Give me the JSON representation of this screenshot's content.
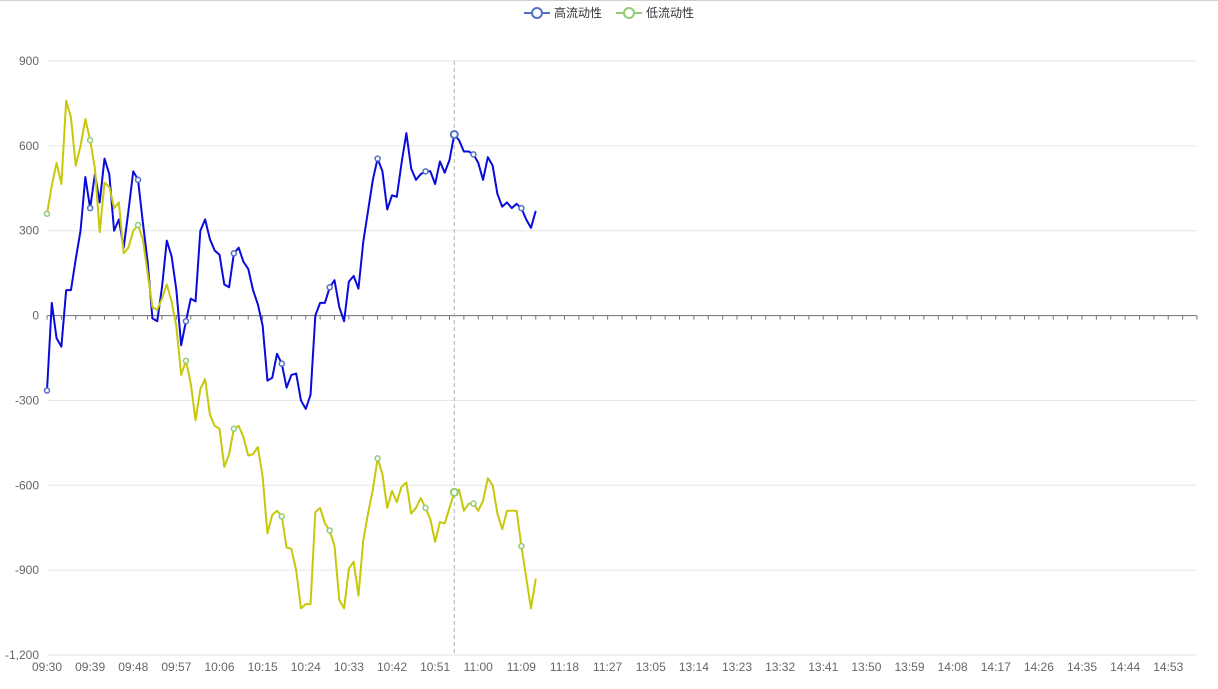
{
  "chart_data": {
    "type": "line",
    "legend_position": "top-center",
    "x_labels": [
      "09:30",
      "09:39",
      "09:48",
      "09:57",
      "10:06",
      "10:15",
      "10:24",
      "10:33",
      "10:42",
      "10:51",
      "11:00",
      "11:09",
      "11:18",
      "11:27",
      "13:05",
      "13:14",
      "13:23",
      "13:32",
      "13:41",
      "13:50",
      "13:59",
      "14:08",
      "14:17",
      "14:26",
      "14:35",
      "14:44",
      "14:53"
    ],
    "x_slots_per_label": 9,
    "x_slots_total": 240,
    "y_ticks": [
      900,
      600,
      300,
      0,
      -300,
      -600,
      -900,
      -1200
    ],
    "y_tick_labels": [
      "900",
      "600",
      "300",
      "0",
      "-300",
      "-600",
      "-900",
      "-1,200"
    ],
    "ylim": [
      -1200,
      900
    ],
    "grid": true,
    "hover_index": 85,
    "series": [
      {
        "name": "高流动性",
        "color": "#0a0adc",
        "marker_color": "#5470c6",
        "points": [
          [
            0,
            -265
          ],
          [
            1,
            45
          ],
          [
            2,
            -80
          ],
          [
            3,
            -110
          ],
          [
            4,
            90
          ],
          [
            5,
            90
          ],
          [
            6,
            200
          ],
          [
            7,
            300
          ],
          [
            8,
            490
          ],
          [
            9,
            380
          ],
          [
            10,
            500
          ],
          [
            11,
            400
          ],
          [
            12,
            555
          ],
          [
            13,
            500
          ],
          [
            14,
            300
          ],
          [
            15,
            340
          ],
          [
            16,
            240
          ],
          [
            17,
            370
          ],
          [
            18,
            510
          ],
          [
            19,
            480
          ],
          [
            20,
            330
          ],
          [
            21,
            190
          ],
          [
            22,
            -10
          ],
          [
            23,
            -20
          ],
          [
            24,
            100
          ],
          [
            25,
            265
          ],
          [
            26,
            210
          ],
          [
            27,
            90
          ],
          [
            28,
            -105
          ],
          [
            29,
            -20
          ],
          [
            30,
            60
          ],
          [
            31,
            50
          ],
          [
            32,
            300
          ],
          [
            33,
            340
          ],
          [
            34,
            270
          ],
          [
            35,
            230
          ],
          [
            36,
            215
          ],
          [
            37,
            110
          ],
          [
            38,
            100
          ],
          [
            39,
            220
          ],
          [
            40,
            240
          ],
          [
            41,
            190
          ],
          [
            42,
            165
          ],
          [
            43,
            90
          ],
          [
            44,
            40
          ],
          [
            45,
            -35
          ],
          [
            46,
            -230
          ],
          [
            47,
            -220
          ],
          [
            48,
            -135
          ],
          [
            49,
            -170
          ],
          [
            50,
            -255
          ],
          [
            51,
            -210
          ],
          [
            52,
            -205
          ],
          [
            53,
            -300
          ],
          [
            54,
            -330
          ],
          [
            55,
            -280
          ],
          [
            56,
            0
          ],
          [
            57,
            45
          ],
          [
            58,
            45
          ],
          [
            59,
            100
          ],
          [
            60,
            125
          ],
          [
            61,
            30
          ],
          [
            62,
            -20
          ],
          [
            63,
            120
          ],
          [
            64,
            140
          ],
          [
            65,
            95
          ],
          [
            66,
            260
          ],
          [
            67,
            370
          ],
          [
            68,
            480
          ],
          [
            69,
            555
          ],
          [
            70,
            510
          ],
          [
            71,
            375
          ],
          [
            72,
            425
          ],
          [
            73,
            420
          ],
          [
            74,
            540
          ],
          [
            75,
            645
          ],
          [
            76,
            520
          ],
          [
            77,
            480
          ],
          [
            78,
            500
          ],
          [
            79,
            510
          ],
          [
            80,
            510
          ],
          [
            81,
            465
          ],
          [
            82,
            545
          ],
          [
            83,
            505
          ],
          [
            84,
            550
          ],
          [
            85,
            640
          ],
          [
            86,
            620
          ],
          [
            87,
            580
          ],
          [
            88,
            580
          ],
          [
            89,
            570
          ],
          [
            90,
            540
          ],
          [
            91,
            480
          ],
          [
            92,
            560
          ],
          [
            93,
            530
          ],
          [
            94,
            430
          ],
          [
            95,
            385
          ],
          [
            96,
            400
          ],
          [
            97,
            380
          ],
          [
            98,
            395
          ],
          [
            99,
            380
          ],
          [
            100,
            340
          ],
          [
            101,
            310
          ],
          [
            102,
            370
          ]
        ],
        "marker_indices": [
          0,
          9,
          19,
          29,
          39,
          49,
          59,
          69,
          79,
          89,
          99
        ]
      },
      {
        "name": "低流动性",
        "color": "#c8c80a",
        "marker_color": "#91cc75",
        "points": [
          [
            0,
            360
          ],
          [
            1,
            460
          ],
          [
            2,
            540
          ],
          [
            3,
            465
          ],
          [
            4,
            760
          ],
          [
            5,
            700
          ],
          [
            6,
            530
          ],
          [
            7,
            600
          ],
          [
            8,
            695
          ],
          [
            9,
            620
          ],
          [
            10,
            520
          ],
          [
            11,
            295
          ],
          [
            12,
            470
          ],
          [
            13,
            455
          ],
          [
            14,
            380
          ],
          [
            15,
            400
          ],
          [
            16,
            220
          ],
          [
            17,
            240
          ],
          [
            18,
            300
          ],
          [
            19,
            320
          ],
          [
            20,
            270
          ],
          [
            21,
            150
          ],
          [
            22,
            30
          ],
          [
            23,
            20
          ],
          [
            24,
            60
          ],
          [
            25,
            110
          ],
          [
            26,
            50
          ],
          [
            27,
            -40
          ],
          [
            28,
            -210
          ],
          [
            29,
            -160
          ],
          [
            30,
            -240
          ],
          [
            31,
            -370
          ],
          [
            32,
            -260
          ],
          [
            33,
            -225
          ],
          [
            34,
            -350
          ],
          [
            35,
            -390
          ],
          [
            36,
            -400
          ],
          [
            37,
            -535
          ],
          [
            38,
            -490
          ],
          [
            39,
            -400
          ],
          [
            40,
            -390
          ],
          [
            41,
            -430
          ],
          [
            42,
            -495
          ],
          [
            43,
            -490
          ],
          [
            44,
            -465
          ],
          [
            45,
            -570
          ],
          [
            46,
            -770
          ],
          [
            47,
            -705
          ],
          [
            48,
            -690
          ],
          [
            49,
            -710
          ],
          [
            50,
            -820
          ],
          [
            51,
            -825
          ],
          [
            52,
            -900
          ],
          [
            53,
            -1035
          ],
          [
            54,
            -1020
          ],
          [
            55,
            -1020
          ],
          [
            56,
            -695
          ],
          [
            57,
            -680
          ],
          [
            58,
            -735
          ],
          [
            59,
            -760
          ],
          [
            60,
            -815
          ],
          [
            61,
            -1005
          ],
          [
            62,
            -1035
          ],
          [
            63,
            -895
          ],
          [
            64,
            -870
          ],
          [
            65,
            -990
          ],
          [
            66,
            -795
          ],
          [
            67,
            -700
          ],
          [
            68,
            -615
          ],
          [
            69,
            -505
          ],
          [
            70,
            -560
          ],
          [
            71,
            -680
          ],
          [
            72,
            -620
          ],
          [
            73,
            -660
          ],
          [
            74,
            -605
          ],
          [
            75,
            -590
          ],
          [
            76,
            -700
          ],
          [
            77,
            -680
          ],
          [
            78,
            -645
          ],
          [
            79,
            -680
          ],
          [
            80,
            -720
          ],
          [
            81,
            -800
          ],
          [
            82,
            -730
          ],
          [
            83,
            -735
          ],
          [
            84,
            -680
          ],
          [
            85,
            -625
          ],
          [
            86,
            -615
          ],
          [
            87,
            -690
          ],
          [
            88,
            -665
          ],
          [
            89,
            -665
          ],
          [
            90,
            -690
          ],
          [
            91,
            -655
          ],
          [
            92,
            -575
          ],
          [
            93,
            -600
          ],
          [
            94,
            -700
          ],
          [
            95,
            -755
          ],
          [
            96,
            -690
          ],
          [
            97,
            -690
          ],
          [
            98,
            -690
          ],
          [
            99,
            -815
          ],
          [
            100,
            -925
          ],
          [
            101,
            -1035
          ],
          [
            102,
            -930
          ]
        ],
        "marker_indices": [
          0,
          9,
          19,
          29,
          39,
          49,
          59,
          69,
          79,
          89,
          99
        ]
      }
    ]
  }
}
